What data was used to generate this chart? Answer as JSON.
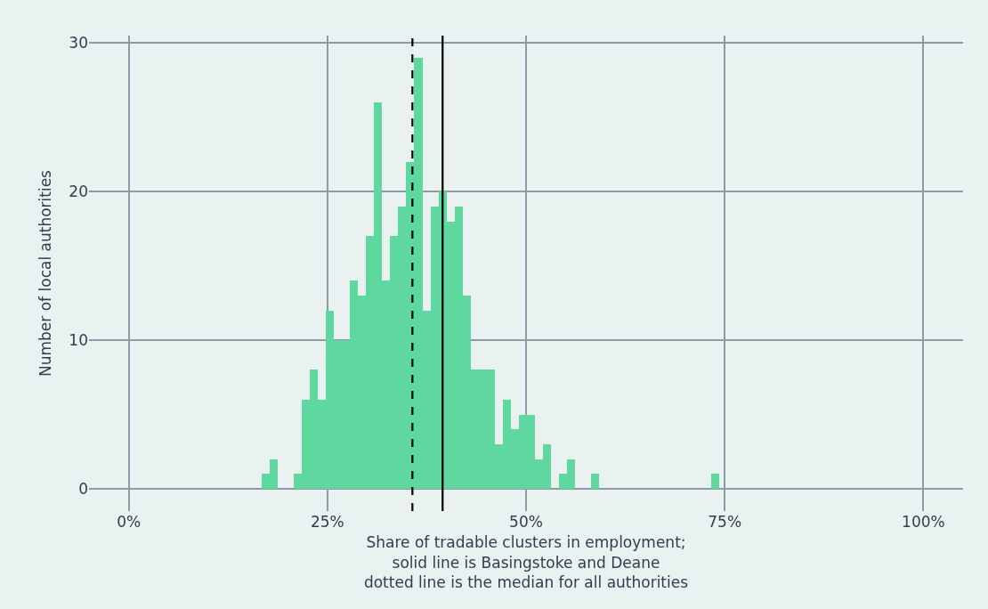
{
  "chart_data": {
    "type": "histogram",
    "xlabel": "Share of tradable clusters in employment;\nsolid line is Basingstoke and Deane\ndotted line is the median for all authorities",
    "ylabel": "Number of local authorities",
    "bins": [
      16.75,
      17.76,
      18.77,
      19.78,
      20.79,
      21.8,
      22.81,
      23.82,
      24.83,
      25.84,
      26.85,
      27.86,
      28.87,
      29.88,
      30.89,
      31.9,
      32.91,
      33.92,
      34.93,
      35.94,
      36.95,
      37.96,
      38.97,
      39.98,
      40.99,
      42.0,
      43.01,
      44.02,
      45.03,
      46.04,
      47.05,
      48.06,
      49.07,
      50.08,
      51.09,
      52.1,
      53.11,
      54.12,
      55.13,
      56.14,
      57.15,
      58.16,
      59.17,
      60.18,
      61.19,
      62.2,
      63.21,
      64.22,
      65.23,
      66.24,
      67.25,
      68.26,
      69.27,
      70.28,
      71.29,
      72.3,
      73.31,
      74.32
    ],
    "values": [
      1,
      2,
      0,
      0,
      1,
      6,
      8,
      6,
      12,
      10,
      10,
      14,
      13,
      17,
      26,
      14,
      17,
      19,
      22,
      29,
      12,
      19,
      20,
      18,
      19,
      13,
      8,
      8,
      8,
      3,
      6,
      4,
      5,
      5,
      2,
      3,
      0,
      1,
      2,
      0,
      0,
      1,
      0,
      0,
      0,
      0,
      0,
      0,
      0,
      0,
      0,
      0,
      0,
      0,
      0,
      0,
      1
    ],
    "color": "#5fd8a0",
    "xlim": [
      -5,
      105
    ],
    "xticks": [
      {
        "value": 0,
        "label": "0%"
      },
      {
        "value": 25,
        "label": "25%"
      },
      {
        "value": 50,
        "label": "50%"
      },
      {
        "value": 75,
        "label": "75%"
      },
      {
        "value": 100,
        "label": "100%"
      }
    ],
    "ylim": [
      -1.5,
      30.5
    ],
    "yticks": [
      0,
      10,
      20,
      30
    ],
    "grid": true,
    "ref_lines": [
      {
        "axis": "x",
        "value": 35.7,
        "color": "#000000",
        "line_style": "dashed"
      },
      {
        "axis": "x",
        "value": 39.5,
        "color": "#000000",
        "line_style": "solid"
      }
    ]
  }
}
